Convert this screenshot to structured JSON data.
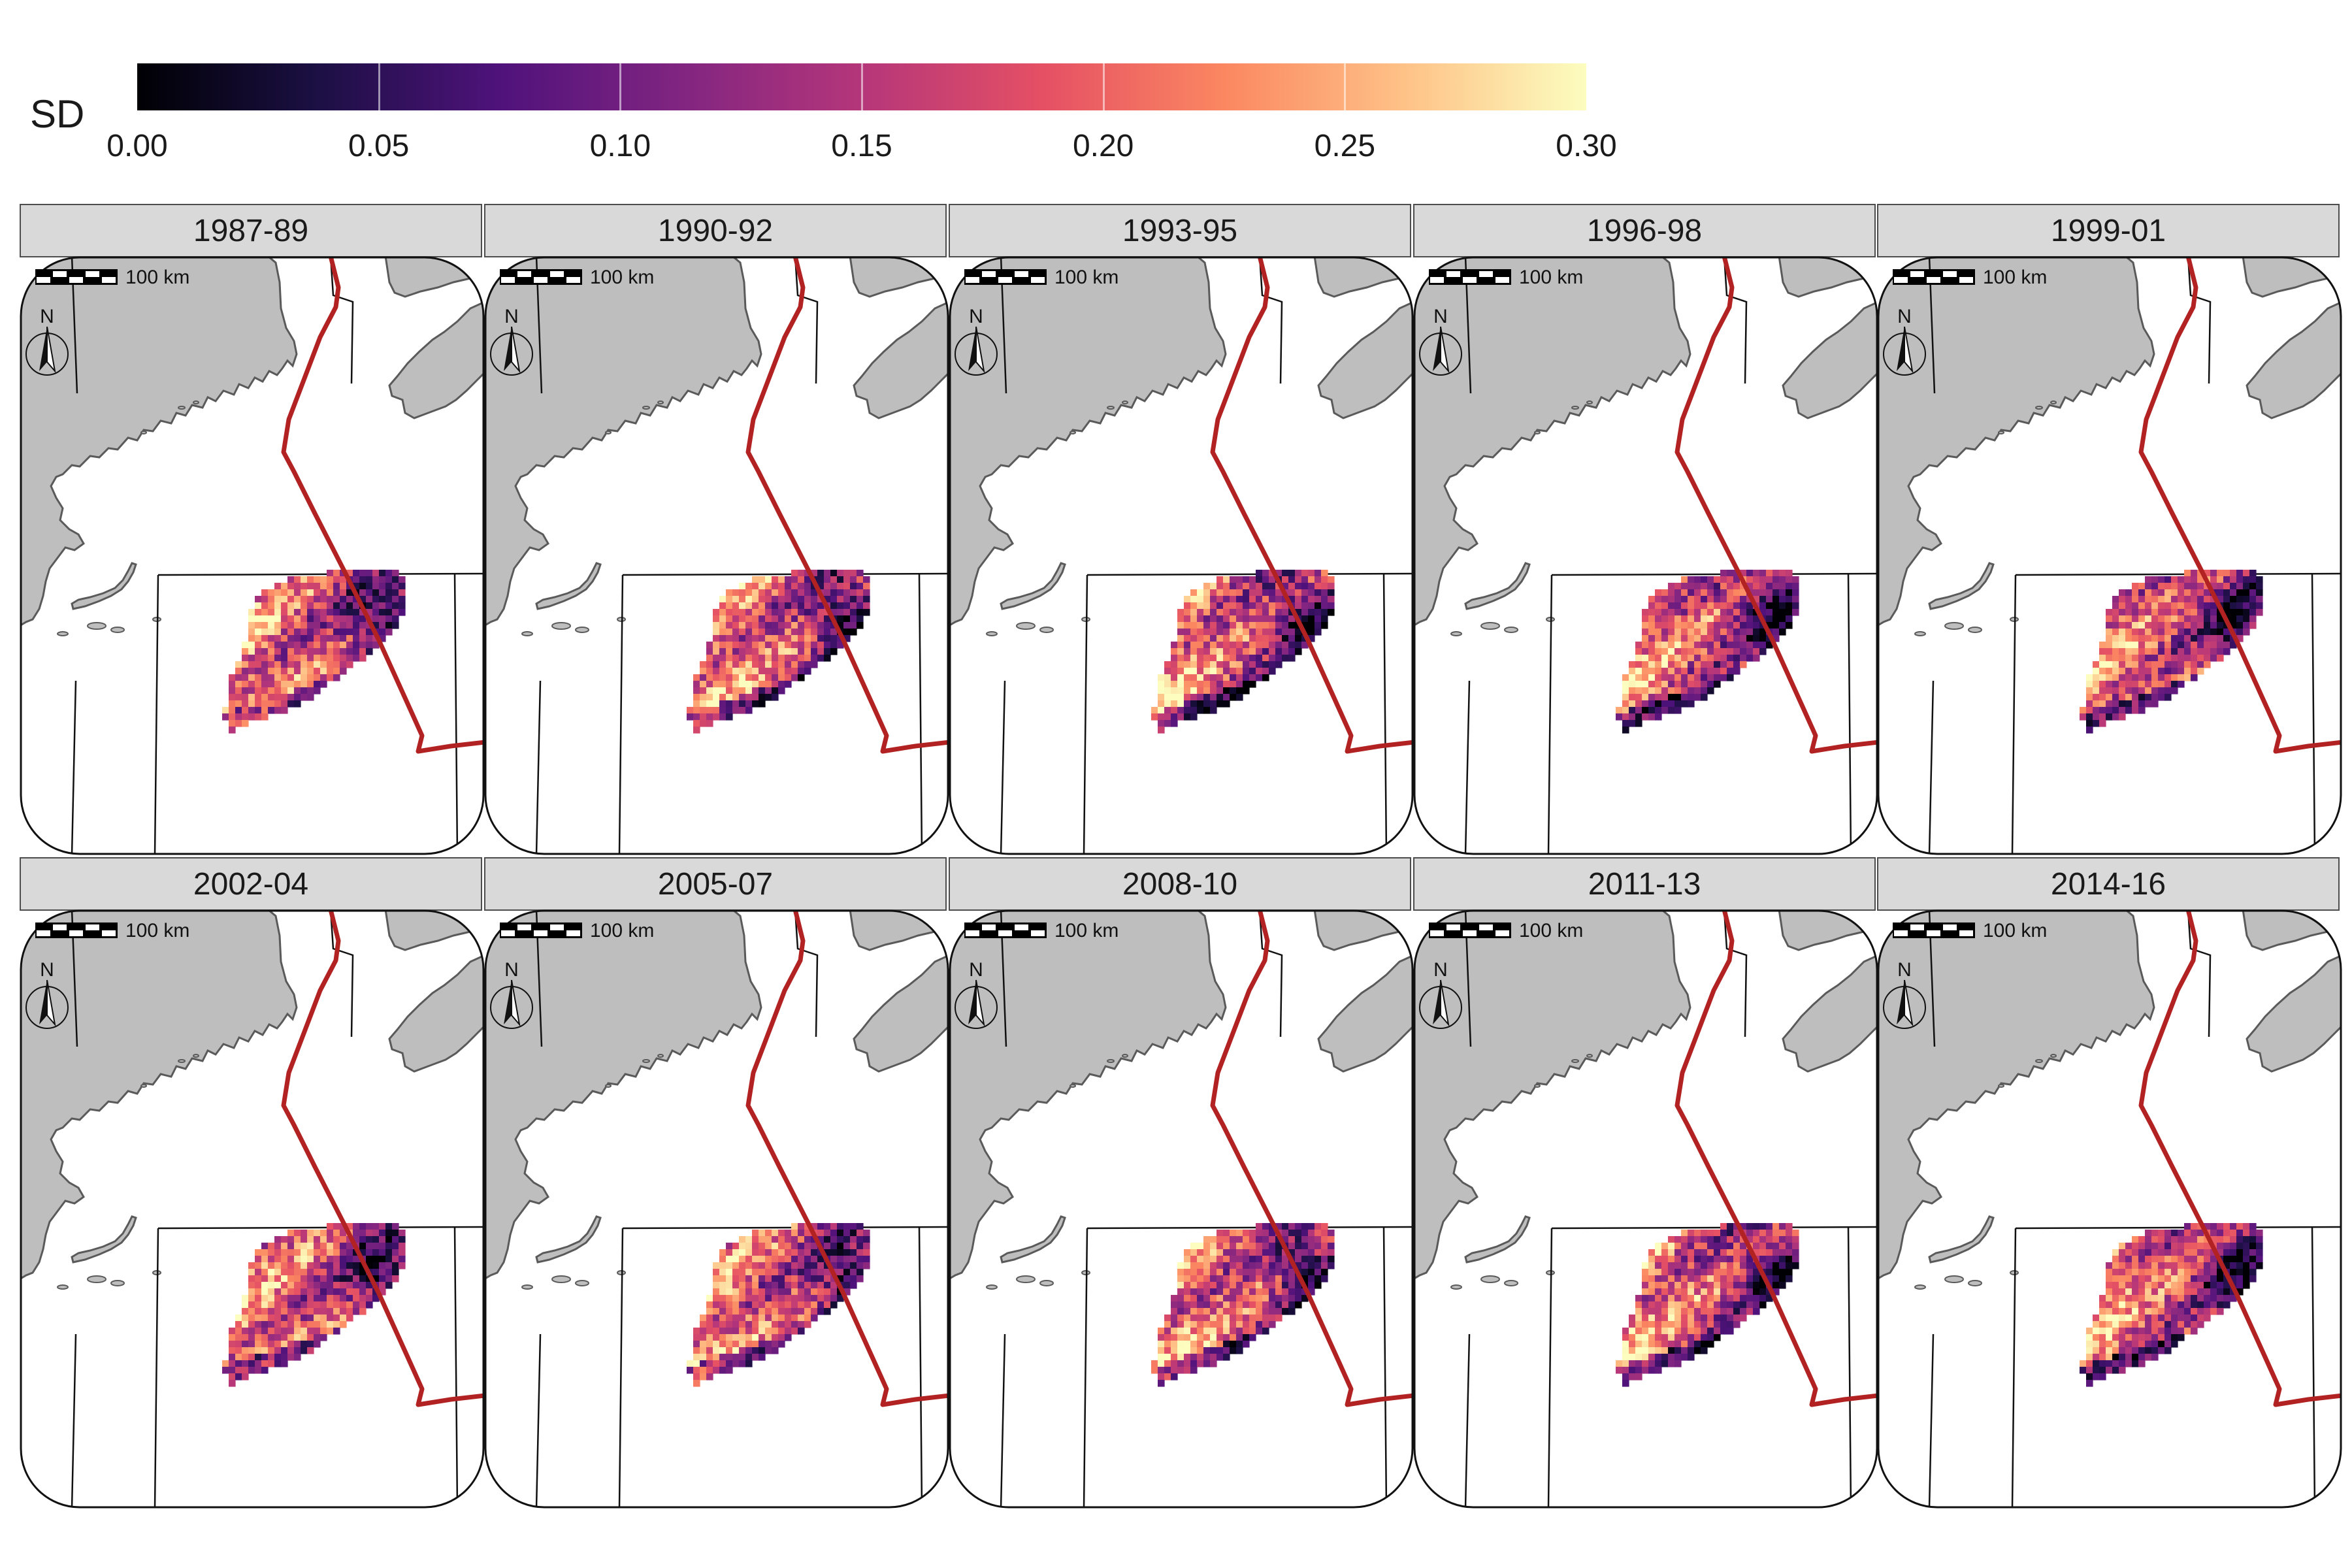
{
  "legend": {
    "title": "SD",
    "ticks": [
      "0.00",
      "0.05",
      "0.10",
      "0.15",
      "0.20",
      "0.25",
      "0.30"
    ],
    "range": [
      0,
      0.3
    ],
    "colormap": "magma",
    "stops": [
      "#000004",
      "#1c1044",
      "#4f127b",
      "#812581",
      "#b5367a",
      "#e55064",
      "#fb8761",
      "#fec287",
      "#fcfdbf"
    ]
  },
  "panels": [
    {
      "label": "1987-89"
    },
    {
      "label": "1990-92"
    },
    {
      "label": "1993-95"
    },
    {
      "label": "1996-98"
    },
    {
      "label": "1999-01"
    },
    {
      "label": "2002-04"
    },
    {
      "label": "2005-07"
    },
    {
      "label": "2008-10"
    },
    {
      "label": "2011-13"
    },
    {
      "label": "2014-16"
    }
  ],
  "scale_bar": {
    "label": "100 km"
  },
  "north_arrow": {
    "label": "N"
  },
  "colors": {
    "land": "#bebebe",
    "coastline": "#5a5a5a",
    "boundary_line": "#b22222",
    "strip_background": "#d9d9d9"
  }
}
